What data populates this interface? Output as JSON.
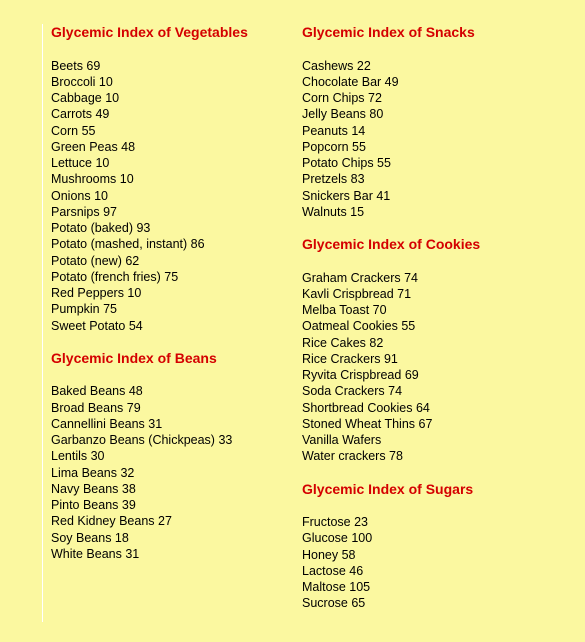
{
  "colors": {
    "background": "#fbf8a0",
    "heading": "#d40000",
    "text": "#000000",
    "rule": "#ffffff"
  },
  "typography": {
    "heading_fontsize": 14,
    "item_fontsize": 12.5,
    "font_family": "Verdana, Geneva, sans-serif"
  },
  "left": {
    "sections": [
      {
        "heading": "Glycemic Index of Vegetables",
        "items": [
          "Beets 69",
          "Broccoli 10",
          "Cabbage 10",
          "Carrots 49",
          "Corn 55",
          "Green Peas 48",
          "Lettuce 10",
          "Mushrooms 10",
          "Onions 10",
          "Parsnips 97",
          "Potato (baked) 93",
          "Potato (mashed, instant) 86",
          "Potato (new) 62",
          "Potato (french fries) 75",
          "Red Peppers 10",
          "Pumpkin 75",
          "Sweet Potato 54"
        ]
      },
      {
        "heading": "Glycemic Index of Beans",
        "items": [
          "Baked Beans 48",
          "Broad Beans 79",
          "Cannellini Beans 31",
          "Garbanzo Beans (Chickpeas) 33",
          "Lentils 30",
          "Lima Beans 32",
          "Navy Beans 38",
          "Pinto Beans 39",
          "Red Kidney Beans 27",
          "Soy Beans 18",
          "White Beans 31"
        ]
      }
    ]
  },
  "right": {
    "sections": [
      {
        "heading": "Glycemic Index of Snacks",
        "items": [
          "Cashews 22",
          "Chocolate Bar 49",
          "Corn Chips 72",
          "Jelly Beans 80",
          "Peanuts 14",
          "Popcorn 55",
          "Potato Chips 55",
          "Pretzels 83",
          "Snickers Bar 41",
          "Walnuts 15"
        ]
      },
      {
        "heading": "Glycemic Index of Cookies",
        "items": [
          "Graham Crackers 74",
          "Kavli Crispbread 71",
          "Melba Toast 70",
          "Oatmeal Cookies 55",
          "Rice Cakes 82",
          "Rice Crackers 91",
          "Ryvita Crispbread 69",
          "Soda Crackers 74",
          "Shortbread Cookies 64",
          "Stoned Wheat Thins 67",
          "Vanilla Wafers",
          "Water crackers 78"
        ]
      },
      {
        "heading": "Glycemic Index of Sugars",
        "items": [
          "Fructose 23",
          "Glucose 100",
          "Honey 58",
          "Lactose 46",
          "Maltose 105",
          "Sucrose 65"
        ]
      }
    ]
  }
}
